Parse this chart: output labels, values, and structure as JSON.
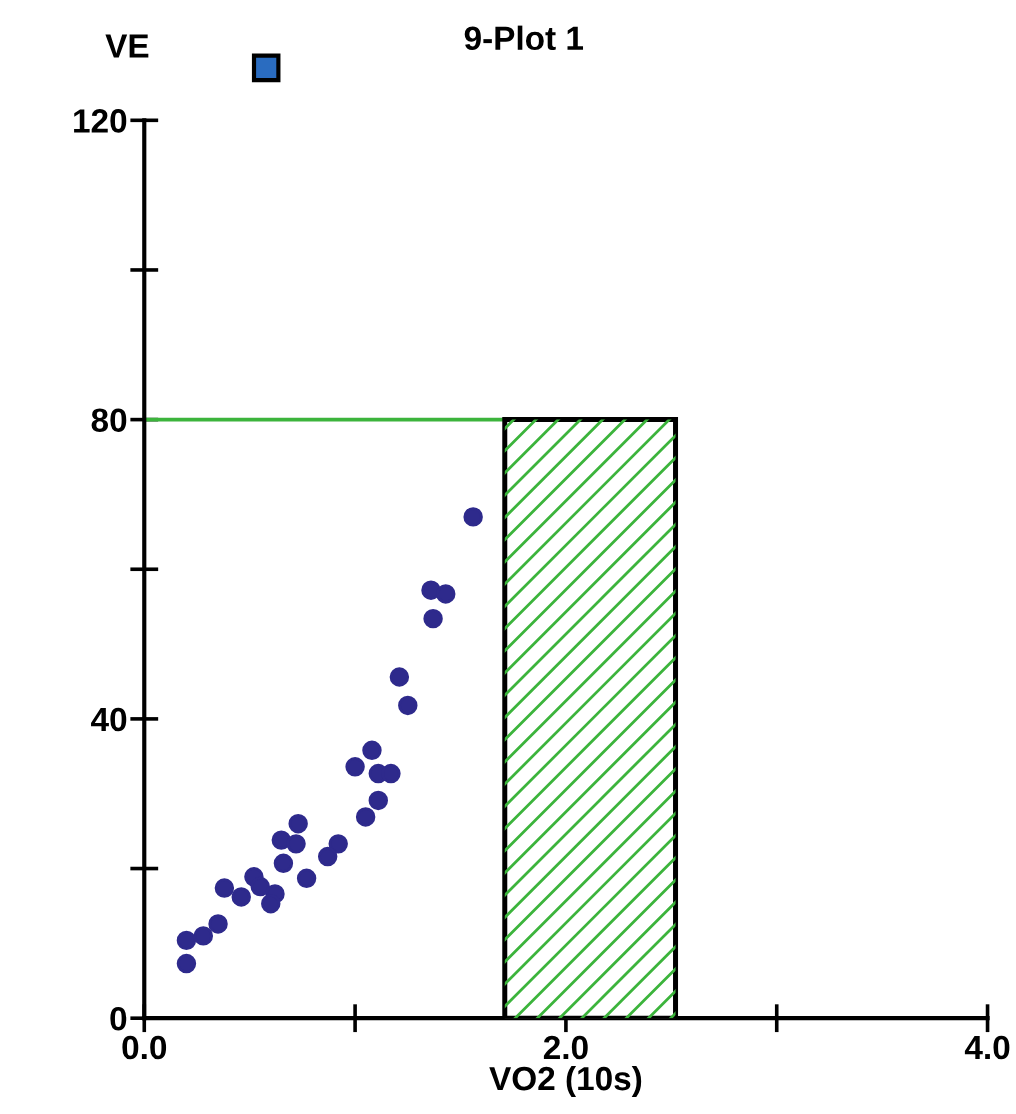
{
  "chart_data": {
    "type": "scatter",
    "title": "9-Plot 1",
    "xlabel": "VO2 (10s)",
    "ylabel": "VE",
    "xlim": [
      0,
      4
    ],
    "ylim": [
      0,
      120
    ],
    "xticks": [
      {
        "value": 0,
        "label": "0.0"
      },
      {
        "value": 1,
        "label": null
      },
      {
        "value": 2,
        "label": "2.0"
      },
      {
        "value": 3,
        "label": null
      },
      {
        "value": 4,
        "label": "4.0"
      }
    ],
    "yticks": [
      0,
      {
        "value": 20,
        "label": null
      },
      40,
      {
        "value": 60,
        "label": null
      },
      80,
      {
        "value": 100,
        "label": null
      },
      120
    ],
    "grid": false,
    "series": [
      {
        "marker": "circle",
        "color": "#2e2a8c",
        "x": [
          1.56,
          1.36,
          1.43,
          1.37,
          1.21,
          1.25,
          1.08,
          1.0,
          1.11,
          1.17,
          1.11,
          1.05,
          0.92,
          0.87,
          0.73,
          0.65,
          0.72,
          0.66,
          0.77,
          0.52,
          0.62,
          0.38,
          0.46,
          0.55,
          0.6,
          0.35,
          0.28,
          0.2,
          0.2
        ],
        "values": [
          67.0,
          57.2,
          56.7,
          53.4,
          45.6,
          41.8,
          35.8,
          33.6,
          32.7,
          32.7,
          29.1,
          26.9,
          23.3,
          21.6,
          26.0,
          23.8,
          23.3,
          20.7,
          18.7,
          18.9,
          16.6,
          17.4,
          16.2,
          17.6,
          15.3,
          12.6,
          11.0,
          10.4,
          7.3
        ]
      },
      {
        "type": "line",
        "color": "#3cb43c",
        "x": [
          0,
          1.71
        ],
        "values": [
          80,
          80
        ]
      },
      {
        "type": "area",
        "color": "#3cb43c",
        "x": [
          1.71,
          2.52
        ],
        "values": [
          80,
          80
        ]
      }
    ]
  }
}
